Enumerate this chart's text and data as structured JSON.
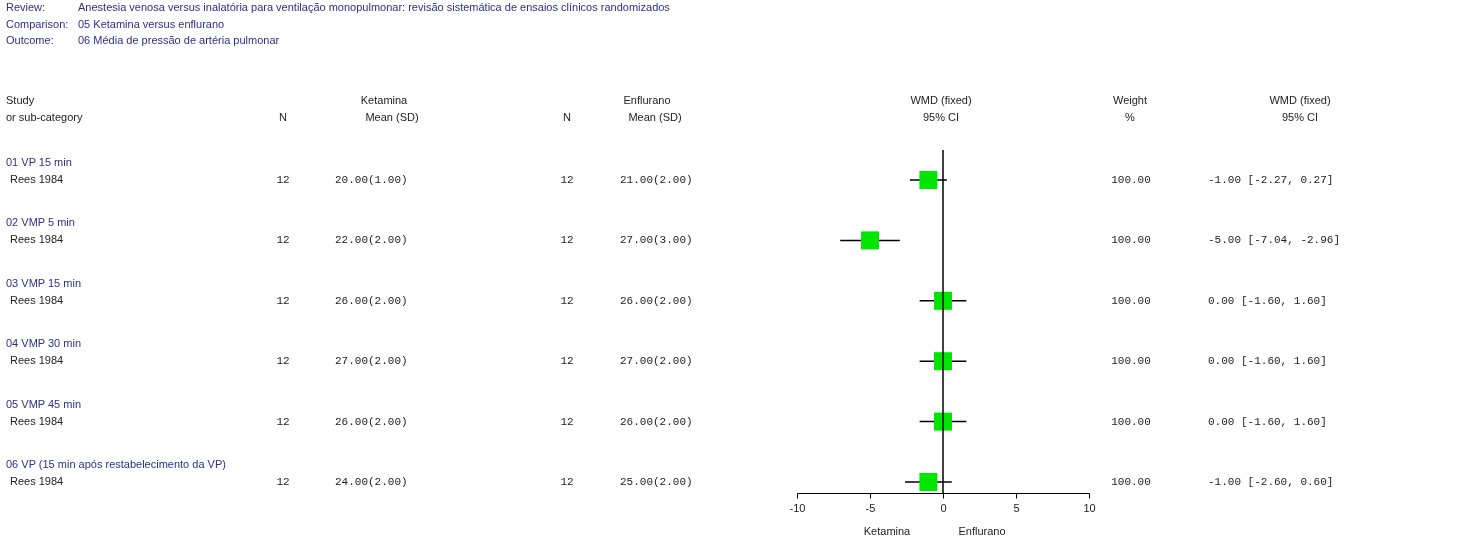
{
  "chart_data": {
    "type": "scatter",
    "orientation": "horizontal",
    "y_categories": [
      "01 VP 15 min",
      "02 VMP 5 min",
      "03 VMP 15 min",
      "04 VMP 30 min",
      "05 VMP 45 min",
      "06 VP (15 min após restabelecimento da VP)"
    ],
    "values": [
      -1,
      -5,
      0,
      0,
      0,
      -1
    ],
    "errors": [
      [
        -2.27,
        0.27
      ],
      [
        -7.04,
        -2.96
      ],
      [
        -1.6,
        1.6
      ],
      [
        -1.6,
        1.6
      ],
      [
        -1.6,
        1.6
      ],
      [
        -2.6,
        0.6
      ]
    ],
    "color": "#00e600",
    "marker": "square",
    "xlim": [
      -10,
      10
    ],
    "xticks": [
      -10,
      -5,
      0,
      5,
      10
    ],
    "ref_lines": [
      {
        "axis": "x",
        "value": 0
      }
    ],
    "annotations": [
      "Review:",
      "Anestesia venosa versus inalatória para ventilação monopulmonar: revisão sistemática de ensaios clínicos randomizados",
      "Comparison:",
      "05 Ketamina versus enflurano",
      "Outcome:",
      "06 Média de pressão de artéria pulmonar",
      "Study",
      "or sub-category",
      "N",
      "Ketamina",
      "Mean (SD)",
      "N",
      "Enflurano",
      "Mean (SD)",
      "WMD (fixed)",
      "95% CI",
      "Weight",
      "%",
      "WMD (fixed)",
      "95% CI",
      "Rees 1984",
      "12",
      "20.00(1.00)",
      "12",
      "21.00(2.00)",
      "100.00",
      "Rees 1984",
      "12",
      "22.00(2.00)",
      "12",
      "27.00(3.00)",
      "100.00",
      "Rees 1984",
      "12",
      "26.00(2.00)",
      "12",
      "26.00(2.00)",
      "100.00",
      "Rees 1984",
      "12",
      "27.00(2.00)",
      "12",
      "27.00(2.00)",
      "100.00",
      "Rees 1984",
      "12",
      "26.00(2.00)",
      "12",
      "26.00(2.00)",
      "100.00",
      "Rees 1984",
      "12",
      "24.00(2.00)",
      "12",
      "25.00(2.00)",
      "100.00",
      "Ketamina",
      "Enflurano",
      "-1.00 [-2.27, 0.27]",
      "-5.00 [-7.04, -2.96]",
      "0.00 [-1.60, 1.60]",
      "0.00 [-1.60, 1.60]",
      "0.00 [-1.60, 1.60]",
      "-1.00 [-2.60, 0.60]"
    ]
  }
}
